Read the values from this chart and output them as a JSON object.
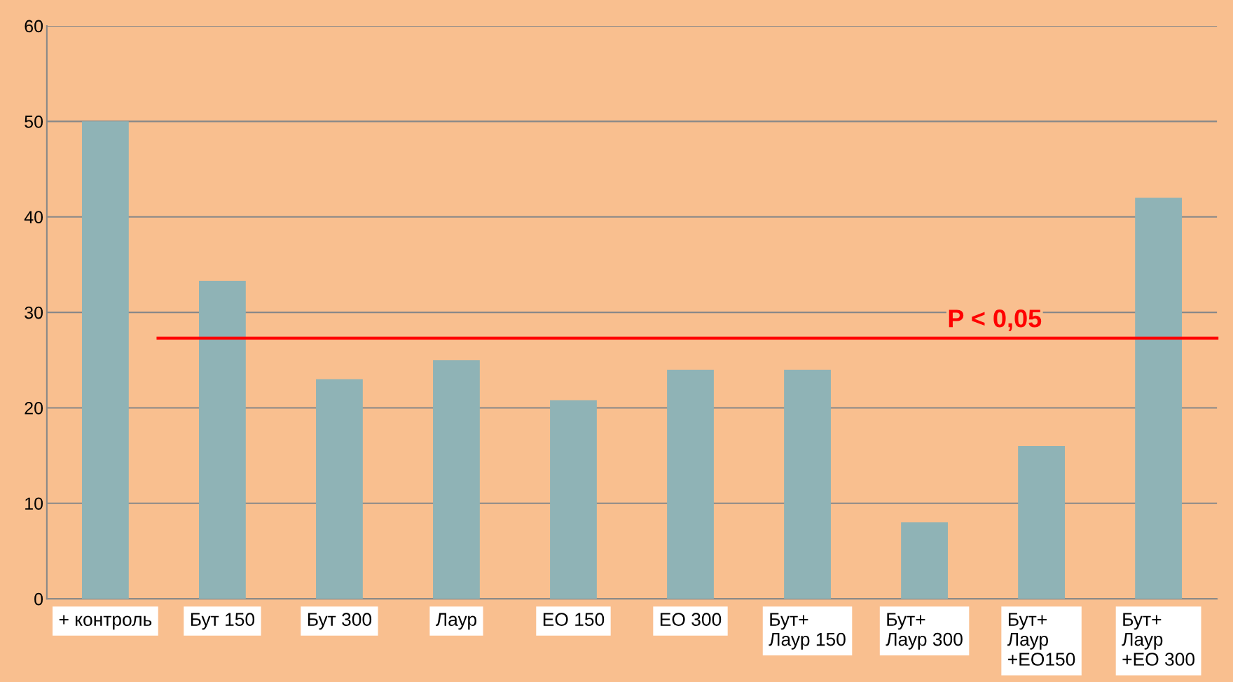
{
  "chart_data": {
    "type": "bar",
    "categories": [
      "+ контроль",
      "Бут 150",
      "Бут 300",
      "Лаур",
      "ЕО 150",
      "ЕО 300",
      "Бут+\nЛаур 150",
      "Бут+\nЛаур 300",
      "Бут+\nЛаур\n+ЕО150",
      "Бут+\nЛаур\n+ЕО 300"
    ],
    "values": [
      50,
      33.3,
      23,
      25,
      20.8,
      24,
      24,
      8,
      16,
      42
    ],
    "color": "#8fb3b6",
    "ylim": [
      0,
      60
    ],
    "yticks": [
      0,
      10,
      20,
      30,
      40,
      50,
      60
    ],
    "grid": "y",
    "ref_lines": [
      {
        "axis": "y",
        "value": 27.3,
        "label": "P < 0,05",
        "color": "#ff0000"
      }
    ]
  }
}
